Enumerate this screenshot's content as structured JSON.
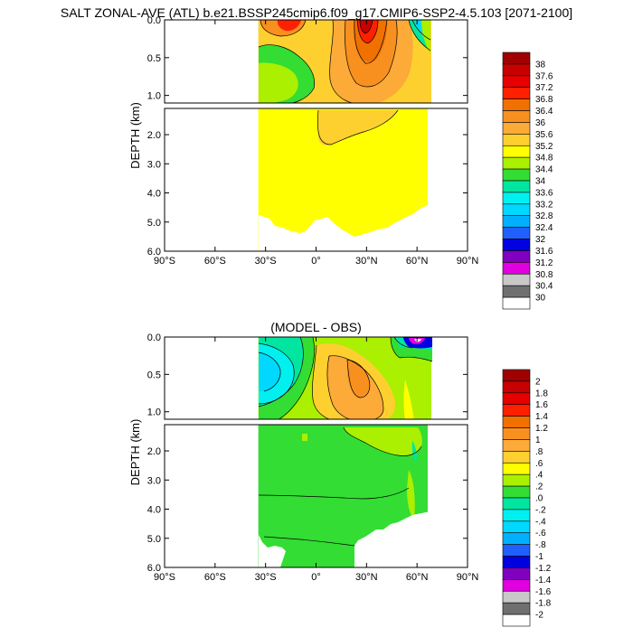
{
  "title": "SALT ZONAL-AVE (ATL) b.e21.BSSP245cmip6.f09_g17.CMIP6-SSP2-4.5.103 [2071-2100]",
  "chart_data": [
    {
      "type": "heatmap",
      "title": "",
      "xlabel": "",
      "ylabel": "DEPTH (km)",
      "x_ticks": [
        "90°S",
        "60°S",
        "30°S",
        "0°",
        "30°N",
        "60°N",
        "90°N"
      ],
      "x_range": [
        -90,
        90
      ],
      "y_ticks_upper": [
        "0.0",
        "0.5",
        "1.0"
      ],
      "y_range_upper": [
        0,
        1.1
      ],
      "y_ticks_lower": [
        "2.0",
        "3.0",
        "4.0",
        "5.0",
        "6.0"
      ],
      "y_range_lower": [
        1.1,
        6.0
      ],
      "colorbar_labels": [
        "38",
        "37.6",
        "37.2",
        "36.8",
        "36.4",
        "36",
        "35.6",
        "35.2",
        "34.8",
        "34.4",
        "34",
        "33.6",
        "33.2",
        "32.8",
        "32.4",
        "32",
        "31.6",
        "31.2",
        "30.8",
        "30.4",
        "30"
      ],
      "colorbar_colors": [
        "#a00000",
        "#c80000",
        "#e60000",
        "#ff2000",
        "#f07000",
        "#f89020",
        "#fcaa38",
        "#fdd030",
        "#ffff00",
        "#aaf000",
        "#33dd33",
        "#00e6a0",
        "#00f0f0",
        "#00d8ff",
        "#00b0ff",
        "#2060ff",
        "#0000e0",
        "#8000c0",
        "#e000e0",
        "#c8c8c8",
        "#707070",
        "#ffffff"
      ]
    },
    {
      "type": "heatmap",
      "title": "(MODEL - OBS)",
      "xlabel": "",
      "ylabel": "DEPTH (km)",
      "x_ticks": [
        "90°S",
        "60°S",
        "30°S",
        "0°",
        "30°N",
        "60°N",
        "90°N"
      ],
      "x_range": [
        -90,
        90
      ],
      "y_ticks_upper": [
        "0.0",
        "0.5",
        "1.0"
      ],
      "y_range_upper": [
        0,
        1.1
      ],
      "y_ticks_lower": [
        "2.0",
        "3.0",
        "4.0",
        "5.0",
        "6.0"
      ],
      "y_range_lower": [
        1.1,
        6.0
      ],
      "colorbar_labels": [
        "2",
        "1.8",
        "1.6",
        "1.4",
        "1.2",
        "1",
        ".8",
        ".6",
        ".4",
        ".2",
        ".0",
        "-.2",
        "-.4",
        "-.6",
        "-.8",
        "-1",
        "-1.2",
        "-1.4",
        "-1.6",
        "-1.8",
        "-2"
      ],
      "colorbar_colors": [
        "#a00000",
        "#c80000",
        "#e60000",
        "#ff2000",
        "#f07000",
        "#f89020",
        "#fcaa38",
        "#fdd030",
        "#ffff00",
        "#aaf000",
        "#33dd33",
        "#00e6a0",
        "#00f0f0",
        "#00d8ff",
        "#00b0ff",
        "#2060ff",
        "#0000e0",
        "#8000c0",
        "#e000e0",
        "#c8c8c8",
        "#707070",
        "#ffffff"
      ]
    }
  ]
}
